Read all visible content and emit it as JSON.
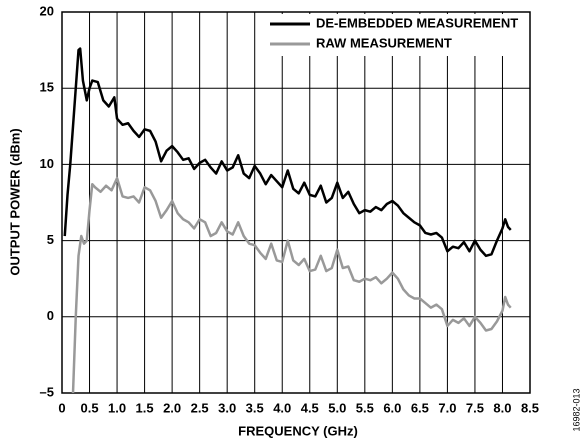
{
  "chart_data": {
    "type": "line",
    "xlabel": "FREQUENCY (GHz)",
    "ylabel": "OUTPUT POWER (dBm)",
    "figure_id": "16982-013",
    "xlim": [
      0,
      8.5
    ],
    "ylim": [
      -5,
      20
    ],
    "xticks": [
      0,
      0.5,
      {
        "value": 1,
        "label": "1.0"
      },
      1.5,
      {
        "value": 2,
        "label": "2.0"
      },
      2.5,
      {
        "value": 3,
        "label": "3.0"
      },
      3.5,
      {
        "value": 4,
        "label": "4.0"
      },
      4.5,
      {
        "value": 5,
        "label": "5.0"
      },
      5.5,
      {
        "value": 6,
        "label": "6.0"
      },
      6.5,
      {
        "value": 7,
        "label": "7.0"
      },
      7.5,
      {
        "value": 8,
        "label": "8.0"
      },
      8.5
    ],
    "yticks": [
      {
        "value": -5,
        "label": "–5"
      },
      0,
      5,
      10,
      15,
      20
    ],
    "grid": true,
    "legend": "upper right",
    "series": [
      {
        "name": "DE-EMBEDDED MEASUREMENT",
        "color": "#000000",
        "x": [
          0.05,
          0.1,
          0.15,
          0.2,
          0.25,
          0.3,
          0.33,
          0.38,
          0.45,
          0.5,
          0.55,
          0.65,
          0.75,
          0.85,
          0.95,
          1.0,
          1.1,
          1.2,
          1.3,
          1.4,
          1.5,
          1.6,
          1.7,
          1.8,
          1.9,
          2.0,
          2.1,
          2.2,
          2.3,
          2.4,
          2.5,
          2.6,
          2.7,
          2.8,
          2.9,
          3.0,
          3.1,
          3.2,
          3.3,
          3.4,
          3.5,
          3.6,
          3.7,
          3.8,
          3.9,
          4.0,
          4.1,
          4.2,
          4.3,
          4.4,
          4.5,
          4.6,
          4.7,
          4.8,
          4.9,
          5.0,
          5.1,
          5.2,
          5.3,
          5.4,
          5.5,
          5.6,
          5.7,
          5.8,
          5.9,
          6.0,
          6.1,
          6.2,
          6.3,
          6.4,
          6.5,
          6.6,
          6.7,
          6.8,
          6.9,
          7.0,
          7.1,
          7.2,
          7.3,
          7.4,
          7.5,
          7.6,
          7.7,
          7.8,
          7.9,
          8.0,
          8.05,
          8.1,
          8.15
        ],
        "values": [
          5.3,
          8,
          10,
          12.5,
          15,
          17.5,
          17.6,
          15.5,
          14.2,
          15,
          15.5,
          15.4,
          14.2,
          13.8,
          14.4,
          13,
          12.6,
          12.7,
          12.2,
          11.8,
          12.3,
          12.2,
          11.5,
          10.2,
          10.9,
          11.2,
          10.8,
          10.3,
          10.4,
          9.7,
          10.1,
          10.3,
          9.8,
          9.4,
          10.2,
          9.6,
          9.8,
          10.6,
          9.4,
          9.1,
          9.9,
          9.4,
          8.7,
          9.3,
          8.9,
          8.5,
          9.6,
          8.4,
          8.1,
          8.8,
          8.0,
          7.9,
          8.6,
          7.5,
          7.8,
          8.8,
          7.8,
          8.2,
          7.4,
          6.8,
          7.0,
          6.9,
          7.2,
          7.0,
          7.4,
          7.6,
          7.3,
          6.8,
          6.5,
          6.2,
          6.0,
          5.5,
          5.4,
          5.5,
          5.2,
          4.3,
          4.6,
          4.5,
          4.9,
          4.3,
          5.0,
          4.4,
          4.0,
          4.1,
          5.0,
          5.8,
          6.4,
          5.9,
          5.7
        ]
      },
      {
        "name": "RAW MEASUREMENT",
        "color": "#999999",
        "x": [
          0.2,
          0.25,
          0.3,
          0.35,
          0.4,
          0.45,
          0.5,
          0.55,
          0.6,
          0.7,
          0.8,
          0.9,
          1.0,
          1.1,
          1.2,
          1.3,
          1.4,
          1.5,
          1.6,
          1.7,
          1.8,
          1.9,
          2.0,
          2.1,
          2.2,
          2.3,
          2.4,
          2.5,
          2.6,
          2.7,
          2.8,
          2.9,
          3.0,
          3.1,
          3.2,
          3.3,
          3.4,
          3.5,
          3.6,
          3.7,
          3.8,
          3.9,
          4.0,
          4.1,
          4.2,
          4.3,
          4.4,
          4.5,
          4.6,
          4.7,
          4.8,
          4.9,
          5.0,
          5.1,
          5.2,
          5.3,
          5.4,
          5.5,
          5.6,
          5.7,
          5.8,
          5.9,
          6.0,
          6.1,
          6.2,
          6.3,
          6.4,
          6.5,
          6.6,
          6.7,
          6.8,
          6.9,
          7.0,
          7.1,
          7.2,
          7.3,
          7.4,
          7.5,
          7.6,
          7.7,
          7.8,
          7.9,
          8.0,
          8.05,
          8.1,
          8.15
        ],
        "values": [
          -5,
          0,
          4,
          5.3,
          4.8,
          5.0,
          7,
          8.7,
          8.5,
          8.2,
          8.6,
          8.3,
          9.1,
          7.9,
          7.8,
          7.9,
          7.5,
          8.5,
          8.3,
          7.6,
          6.5,
          7.0,
          7.6,
          6.8,
          6.4,
          6.2,
          5.8,
          6.4,
          6.2,
          5.3,
          5.5,
          6.2,
          5.6,
          5.4,
          6.2,
          5.3,
          4.8,
          4.7,
          4.2,
          3.8,
          4.8,
          3.7,
          3.6,
          5.0,
          3.7,
          3.4,
          3.8,
          3.0,
          3.1,
          4.0,
          3.0,
          3.2,
          4.4,
          3.2,
          3.3,
          2.4,
          2.3,
          2.5,
          2.4,
          2.6,
          2.2,
          2.5,
          2.9,
          2.5,
          1.8,
          1.4,
          1.2,
          1.2,
          0.9,
          0.6,
          0.8,
          0.5,
          -0.6,
          -0.2,
          -0.4,
          -0.1,
          -0.6,
          0.0,
          -0.4,
          -0.9,
          -0.8,
          -0.3,
          0.4,
          1.3,
          0.8,
          0.6
        ]
      }
    ]
  }
}
